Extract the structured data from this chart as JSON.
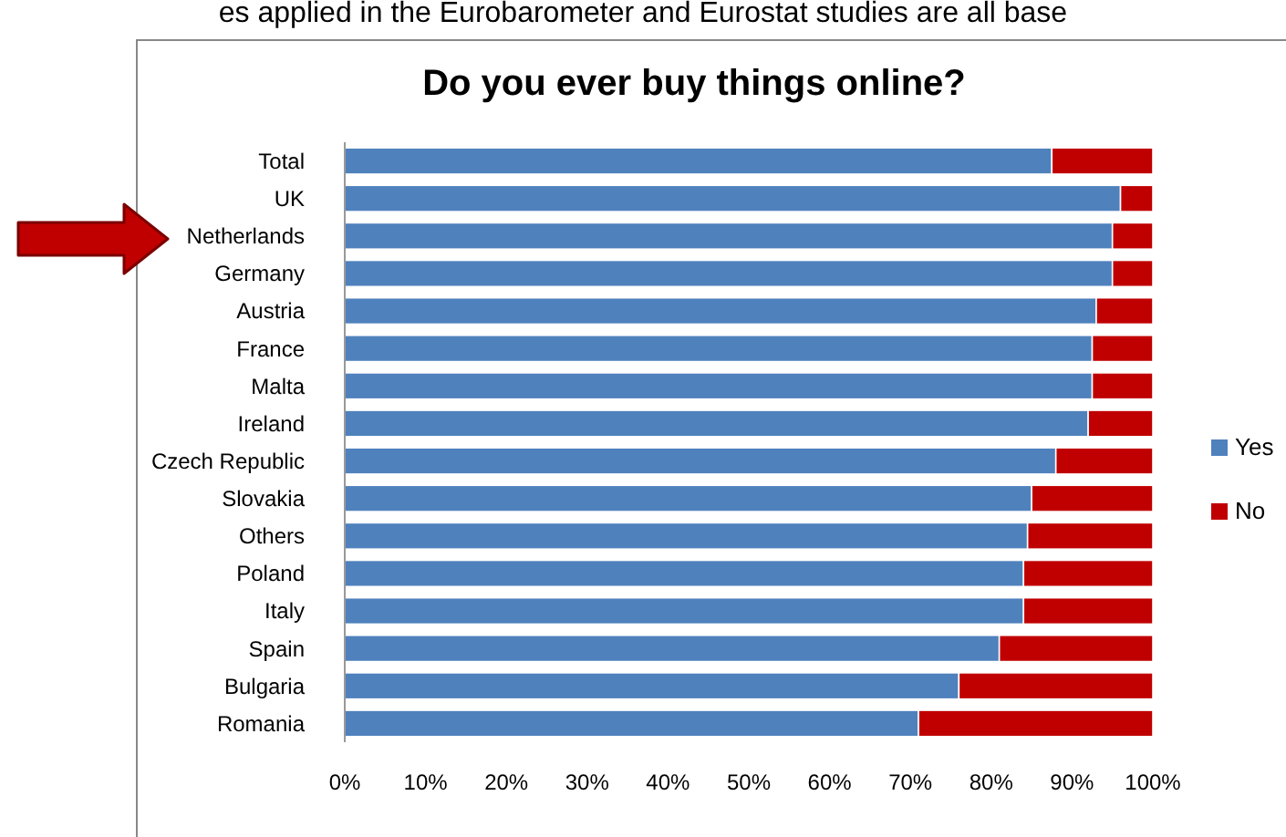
{
  "chart_data": {
    "type": "bar",
    "orientation": "horizontal",
    "stacked": true,
    "title": "Do you ever buy things online?",
    "annotations": [
      "es applied in the Eurobarometer and Eurostat studies are all base"
    ],
    "categories": [
      "Total",
      "UK",
      "Netherlands",
      "Germany",
      "Austria",
      "France",
      "Malta",
      "Ireland",
      "Czech Republic",
      "Slovakia",
      "Others",
      "Poland",
      "Italy",
      "Spain",
      "Bulgaria",
      "Romania"
    ],
    "series": [
      {
        "name": "Yes",
        "color": "#4f81bd",
        "values": [
          87.5,
          96,
          95,
          95,
          93,
          92.5,
          92.5,
          92,
          88,
          85,
          84.5,
          84,
          84,
          81,
          76,
          71
        ]
      },
      {
        "name": "No",
        "color": "#c00000",
        "values": [
          12.5,
          4,
          5,
          5,
          7,
          7.5,
          7.5,
          8,
          12,
          15,
          15.5,
          16,
          16,
          19,
          24,
          29
        ]
      }
    ],
    "xlim": [
      0,
      100
    ],
    "xticks": [
      {
        "value": 0,
        "label": "0%"
      },
      {
        "value": 10,
        "label": "10%"
      },
      {
        "value": 20,
        "label": "20%"
      },
      {
        "value": 30,
        "label": "30%"
      },
      {
        "value": 40,
        "label": "40%"
      },
      {
        "value": 50,
        "label": "50%"
      },
      {
        "value": 60,
        "label": "60%"
      },
      {
        "value": 70,
        "label": "70%"
      },
      {
        "value": 80,
        "label": "80%"
      },
      {
        "value": 90,
        "label": "90%"
      },
      {
        "value": 100,
        "label": "100%"
      }
    ],
    "legend": "right"
  }
}
